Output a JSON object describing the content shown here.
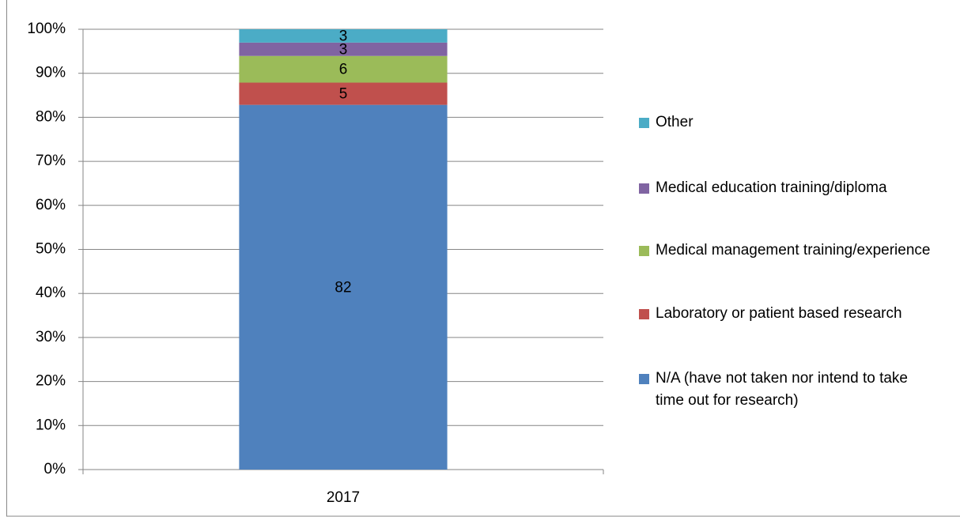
{
  "chart_data": {
    "type": "bar",
    "stacking": "percent",
    "categories": [
      "2017"
    ],
    "series": [
      {
        "name": "N/A (have not taken nor intend to take time out for research)",
        "color": "#4f81bd",
        "values": [
          82
        ]
      },
      {
        "name": "Laboratory or patient based research",
        "color": "#c0504d",
        "values": [
          5
        ]
      },
      {
        "name": "Medical management training/experience",
        "color": "#9bbb59",
        "values": [
          6
        ]
      },
      {
        "name": "Medical education training/diploma",
        "color": "#8064a2",
        "values": [
          3
        ]
      },
      {
        "name": "Other",
        "color": "#4bacc6",
        "values": [
          3
        ]
      }
    ],
    "ylim": [
      0,
      100
    ],
    "yticks": [
      {
        "value": 0,
        "label": "0%"
      },
      {
        "value": 10,
        "label": "10%"
      },
      {
        "value": 20,
        "label": "20%"
      },
      {
        "value": 30,
        "label": "30%"
      },
      {
        "value": 40,
        "label": "40%"
      },
      {
        "value": 50,
        "label": "50%"
      },
      {
        "value": 60,
        "label": "60%"
      },
      {
        "value": 70,
        "label": "70%"
      },
      {
        "value": 80,
        "label": "80%"
      },
      {
        "value": 90,
        "label": "90%"
      },
      {
        "value": 100,
        "label": "100%"
      }
    ],
    "grid": true,
    "legend": "right"
  }
}
